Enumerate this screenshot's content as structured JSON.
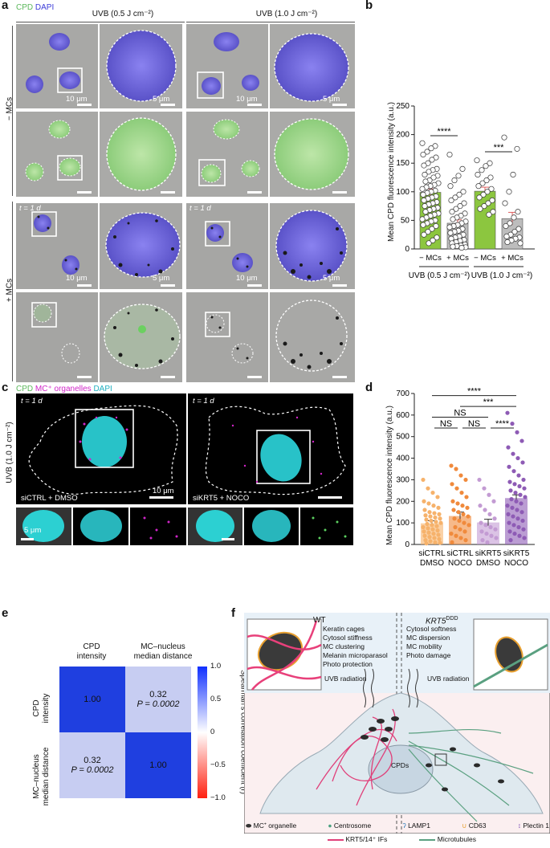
{
  "panels": {
    "a": "a",
    "b": "b",
    "c": "c",
    "d": "d",
    "e": "e",
    "f": "f"
  },
  "panel_a": {
    "legend_cpd": "CPD",
    "legend_dapi": "DAPI",
    "uvb_low": "UVB (0.5 J cm⁻²)",
    "uvb_high": "UVB (1.0 J cm⁻²)",
    "row_minus": "− MCs",
    "row_plus": "+ MCs",
    "scale_10": "10 μm",
    "scale_5": "5 μm",
    "timepoint": "t = 1 d",
    "colors": {
      "dapi": "#6a64d8",
      "cpd": "#7cc47a",
      "melanin": "#1a1a1a",
      "bg": "#a9a9a7"
    }
  },
  "panel_b": {
    "chart_data": {
      "type": "bar",
      "ylabel": "Mean CPD fluorescence intensity (a.u.)",
      "ylim": [
        0,
        250
      ],
      "yticks": [
        0,
        50,
        100,
        150,
        200,
        250
      ],
      "categories": [
        "− MCs",
        "+ MCs",
        "− MCs",
        "+ MCs"
      ],
      "groups": [
        "UVB (0.5 J cm⁻²)",
        "UVB (1.0 J cm⁻²)"
      ],
      "values": [
        99,
        45,
        101,
        53
      ],
      "errors": [
        6,
        6,
        7,
        11
      ],
      "colors": [
        "#8cc63f",
        "#bdbdbd",
        "#8cc63f",
        "#bdbdbd"
      ],
      "significance": [
        "****",
        "***"
      ],
      "points": [
        [
          185,
          180,
          176,
          170,
          165,
          160,
          156,
          150,
          146,
          140,
          138,
          135,
          130,
          128,
          125,
          120,
          118,
          115,
          112,
          110,
          108,
          105,
          102,
          100,
          98,
          95,
          92,
          90,
          88,
          85,
          82,
          80,
          78,
          75,
          72,
          70,
          68,
          65,
          62,
          60,
          58,
          55,
          52,
          50,
          48,
          45,
          42,
          40,
          35,
          30,
          25,
          20,
          15,
          10
        ],
        [
          165,
          140,
          128,
          120,
          110,
          100,
          95,
          90,
          85,
          80,
          75,
          70,
          65,
          62,
          58,
          55,
          52,
          48,
          45,
          42,
          40,
          38,
          35,
          32,
          30,
          28,
          25,
          22,
          20,
          18,
          16,
          14,
          12,
          10,
          8,
          6,
          5,
          4,
          3,
          2
        ],
        [
          155,
          150,
          145,
          138,
          130,
          125,
          120,
          115,
          110,
          105,
          100,
          95,
          90,
          85,
          80,
          75,
          70,
          65,
          60
        ],
        [
          195,
          175,
          130,
          100,
          80,
          65,
          55,
          45,
          40,
          35,
          30,
          25,
          22,
          20,
          18,
          15,
          12,
          10
        ]
      ]
    }
  },
  "panel_c": {
    "legend_cpd": "CPD",
    "legend_mc": "MC⁺ organelles",
    "legend_dapi": "DAPI",
    "side_label": "UVB (1.0 J cm⁻²)",
    "timepoint": "t = 1 d",
    "cond_left": "siCTRL + DMSO",
    "cond_right": "siKRT5 + NOCO",
    "scale_10": "10 μm",
    "scale_5": "5 μm"
  },
  "panel_d": {
    "chart_data": {
      "type": "bar",
      "ylabel": "Mean CPD fluorescence intensity (a.u.)",
      "ylim": [
        0,
        700
      ],
      "yticks": [
        0,
        100,
        200,
        300,
        400,
        500,
        600,
        700
      ],
      "categories": [
        "siCTRL DMSO",
        "siCTRL NOCO",
        "siKRT5 DMSO",
        "siKRT5 NOCO"
      ],
      "cat_line1": [
        "siCTRL",
        "siCTRL",
        "siKRT5",
        "siKRT5"
      ],
      "cat_line2": [
        "DMSO",
        "NOCO",
        "DMSO",
        "NOCO"
      ],
      "values": [
        98,
        132,
        102,
        215
      ],
      "errors": [
        12,
        18,
        15,
        15
      ],
      "colors": [
        "#f6b26b",
        "#f08a3c",
        "#c39bd3",
        "#8e5bb5"
      ],
      "significance": [
        "****",
        "***",
        "NS",
        "NS",
        "NS",
        "****"
      ],
      "points": [
        [
          300,
          260,
          240,
          220,
          200,
          190,
          180,
          170,
          160,
          150,
          145,
          140,
          135,
          130,
          125,
          120,
          115,
          110,
          105,
          100,
          95,
          90,
          85,
          80,
          75,
          70,
          65,
          60,
          55,
          50,
          45,
          40,
          35,
          30,
          25,
          20,
          15,
          10,
          8,
          5
        ],
        [
          365,
          350,
          320,
          300,
          280,
          260,
          240,
          220,
          200,
          190,
          180,
          170,
          160,
          150,
          140,
          130,
          120,
          110,
          100,
          90,
          80,
          70,
          60,
          50,
          40,
          30,
          20,
          10
        ],
        [
          300,
          260,
          230,
          200,
          180,
          160,
          140,
          120,
          100,
          90,
          80,
          70,
          60,
          50,
          40,
          30,
          20,
          10
        ],
        [
          610,
          560,
          520,
          480,
          450,
          420,
          400,
          380,
          360,
          340,
          320,
          300,
          290,
          280,
          270,
          260,
          250,
          240,
          230,
          220,
          210,
          200,
          190,
          180,
          170,
          160,
          150,
          140,
          130,
          120,
          110,
          100,
          90,
          80,
          70,
          60,
          50,
          40,
          30,
          20
        ]
      ]
    }
  },
  "panel_e": {
    "col1": [
      "CPD",
      "intensity"
    ],
    "col2": [
      "MC–nucleus",
      "median distance"
    ],
    "row1": [
      "CPD",
      "intensity"
    ],
    "row2": [
      "MC–nucleus",
      "median distance"
    ],
    "cells": [
      [
        "1.00",
        "0.32",
        "P = 0.0002"
      ],
      [
        "0.32",
        "P = 0.0002",
        "1.00"
      ]
    ],
    "cell_diag": "1.00",
    "cell_off_r": "0.32",
    "cell_off_p": "P = 0.0002",
    "colorbar_label": "Spearman's correlation coefficient (r)",
    "colorbar_ticks": [
      "1.0",
      "0.5",
      "0",
      "−0.5",
      "−1.0"
    ],
    "colors": {
      "diag": "#1f3fe0",
      "off": "#c7cdf2"
    }
  },
  "panel_f": {
    "wt": "WT",
    "ko_a": "KRT5",
    "ko_b": "DDD",
    "wt_list": [
      "Keratin cages",
      "Cytosol stiffness",
      "MC clustering",
      "Melanin microparasol",
      "Photo protection"
    ],
    "ko_list": [
      "Cytosol softness",
      "MC dispersion",
      "MC mobility",
      "Photo damage"
    ],
    "uvb_left": "UVB radiation",
    "uvb_right": "UVB radiation",
    "cpds": "CPDs",
    "legend": [
      "MC⁺ organelle",
      "Centrosome",
      "LAMP1",
      "CD63",
      "Plectin 1",
      "KRT5/14⁺ IFs",
      "Microtubules"
    ]
  }
}
